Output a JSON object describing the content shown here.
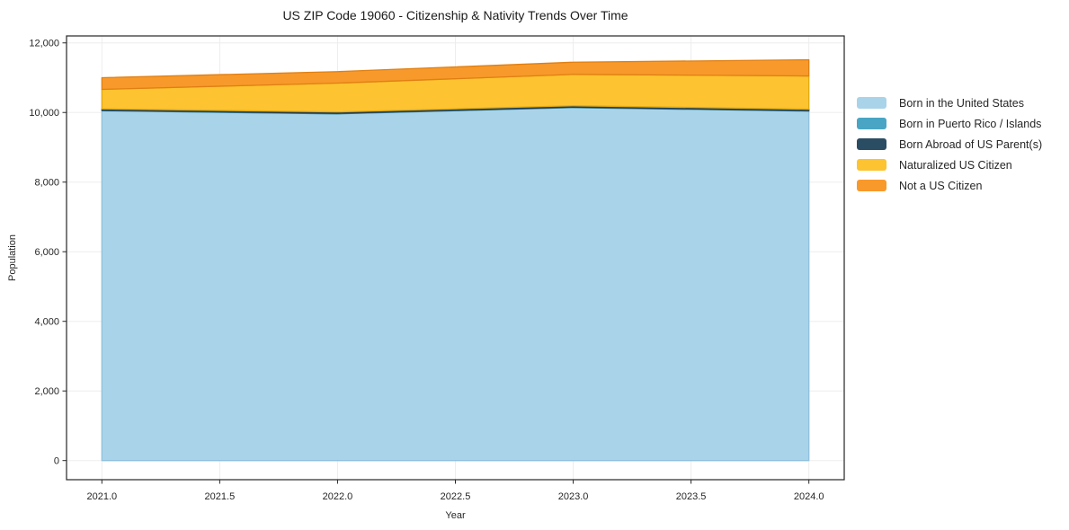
{
  "chart_data": {
    "type": "area",
    "stacked": true,
    "title": "US ZIP Code 19060 - Citizenship & Nativity Trends Over Time",
    "xlabel": "Year",
    "ylabel": "Population",
    "grid": true,
    "legend_position": "right-outside-top",
    "x": [
      2021,
      2022,
      2023,
      2024
    ],
    "series": [
      {
        "name": "Born in the United States",
        "color": "#a9d3e8",
        "edge": "#8fc0dd",
        "values": [
          10050,
          9960,
          10140,
          10040
        ]
      },
      {
        "name": "Born in Puerto Rico / Islands",
        "color": "#4aa5c4",
        "edge": "#3c8aa6",
        "values": [
          15,
          15,
          15,
          15
        ]
      },
      {
        "name": "Born Abroad of US Parent(s)",
        "color": "#2b4d63",
        "edge": "#203c4e",
        "values": [
          40,
          40,
          40,
          40
        ]
      },
      {
        "name": "Naturalized US Citizen",
        "color": "#fdc330",
        "edge": "#e2a912",
        "values": [
          560,
          830,
          900,
          955
        ]
      },
      {
        "name": "Not a US Citizen",
        "color": "#f8992b",
        "edge": "#e07f12",
        "values": [
          335,
          330,
          350,
          465
        ]
      }
    ],
    "x_ticks": {
      "values": [
        2021.0,
        2021.5,
        2022.0,
        2022.5,
        2023.0,
        2023.5,
        2024.0
      ],
      "labels": [
        "2021.0",
        "2021.5",
        "2022.0",
        "2022.5",
        "2023.0",
        "2023.5",
        "2024.0"
      ]
    },
    "y_ticks": {
      "values": [
        0,
        2000,
        4000,
        6000,
        8000,
        10000,
        12000
      ],
      "labels": [
        "0",
        "2,000",
        "4,000",
        "6,000",
        "8,000",
        "10,000",
        "12,000"
      ]
    },
    "xlim": [
      2020.85,
      2024.15
    ],
    "ylim": [
      -550,
      12200
    ],
    "style": {
      "background": "#ffffff",
      "grid_color": "#ededed",
      "axis_color": "#262626",
      "text_color": "#262626",
      "title_color": "#1a1a1a"
    }
  }
}
